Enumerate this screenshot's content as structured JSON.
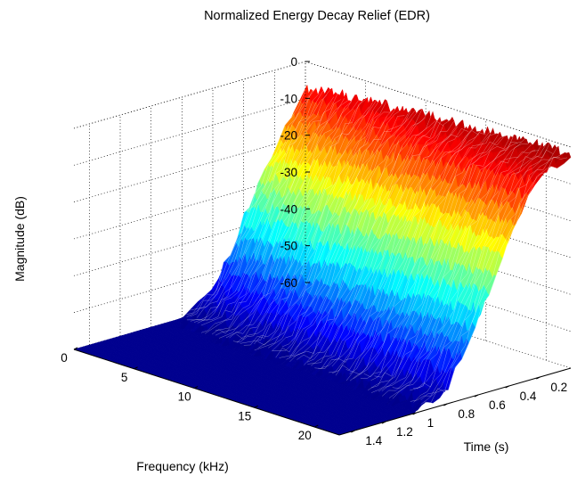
{
  "chart_data": {
    "type": "surface",
    "title": "Normalized Energy Decay Relief (EDR)",
    "xlabel": "Frequency (kHz)",
    "ylabel": "Time (s)",
    "zlabel": "Magnitude (dB)",
    "xlim": [
      0,
      22.05
    ],
    "ylim": [
      0,
      1.5
    ],
    "zlim": [
      -60,
      0
    ],
    "x_ticks": [
      0,
      5,
      10,
      15,
      20
    ],
    "x_tick_labels": [
      "0",
      "5",
      "10",
      "15",
      "20"
    ],
    "y_ticks": [
      0.2,
      0.4,
      0.6,
      0.8,
      1.0,
      1.2,
      1.4
    ],
    "y_tick_labels": [
      "0.2",
      "0.4",
      "0.6",
      "0.8",
      "1",
      "1.2",
      "1.4"
    ],
    "z_ticks": [
      0,
      -10,
      -20,
      -30,
      -40,
      -50,
      -60
    ],
    "z_tick_labels": [
      "0",
      "-10",
      "-20",
      "-30",
      "-40",
      "-50",
      "-60"
    ],
    "colormap": "jet",
    "grid": true,
    "floor_level_db": -60,
    "decay_profile": {
      "time_s": [
        0.0,
        0.2,
        0.4,
        0.6,
        0.8,
        1.0,
        1.2,
        1.4,
        1.5
      ],
      "magnitude_db_low_freq": [
        -8,
        -22,
        -38,
        -56,
        -60,
        -60,
        -60,
        -60,
        -60
      ],
      "magnitude_db_high_freq": [
        -2,
        -5,
        -20,
        -40,
        -56,
        -60,
        -60,
        -60,
        -60
      ]
    }
  }
}
